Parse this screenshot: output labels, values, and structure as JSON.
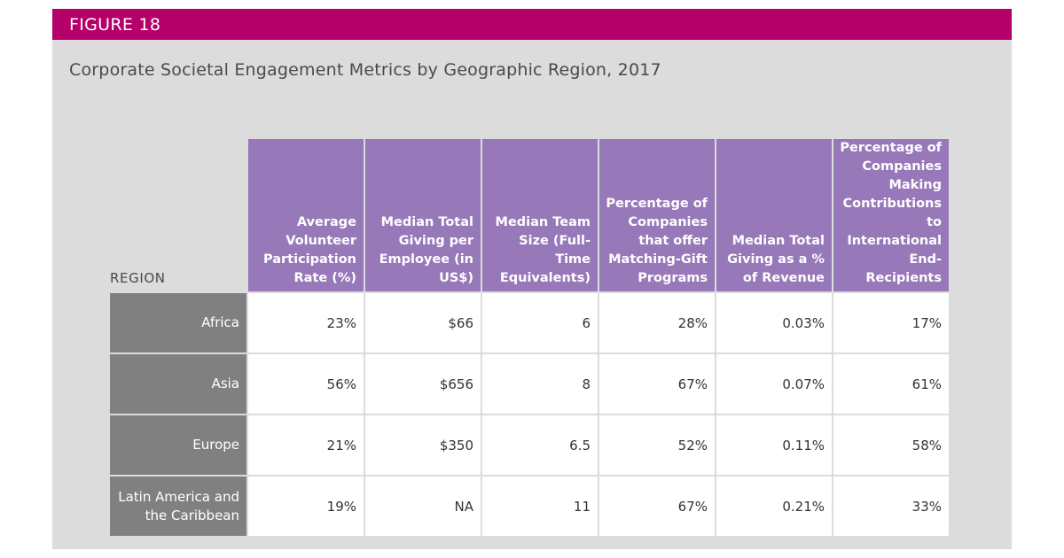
{
  "figure_label": "FIGURE 18",
  "colors": {
    "banner": "#b5006a",
    "header_fill": "#9778b8",
    "region_fill": "#808080",
    "panel": "#dcdcdc"
  },
  "chart_data": {
    "type": "table",
    "title": "Corporate Societal Engagement Metrics by Geographic Region, 2017",
    "row_header_label": "REGION",
    "columns": [
      "Average Volunteer Participation Rate (%)",
      "Median Total Giving per Employee (in US$)",
      "Median Team Size (Full-Time Equivalents)",
      "Percentage of Companies that offer Matching-Gift Programs",
      "Median Total Giving as a % of Revenue",
      "Percentage of Companies Making Contributions to International End-Recipients"
    ],
    "rows": [
      {
        "region": "Africa",
        "values": [
          "23%",
          "$66",
          "6",
          "28%",
          "0.03%",
          "17%"
        ]
      },
      {
        "region": "Asia",
        "values": [
          "56%",
          "$656",
          "8",
          "67%",
          "0.07%",
          "61%"
        ]
      },
      {
        "region": "Europe",
        "values": [
          "21%",
          "$350",
          "6.5",
          "52%",
          "0.11%",
          "58%"
        ]
      },
      {
        "region": "Latin America and the Caribbean",
        "values": [
          "19%",
          "NA",
          "11",
          "67%",
          "0.21%",
          "33%"
        ]
      }
    ]
  }
}
